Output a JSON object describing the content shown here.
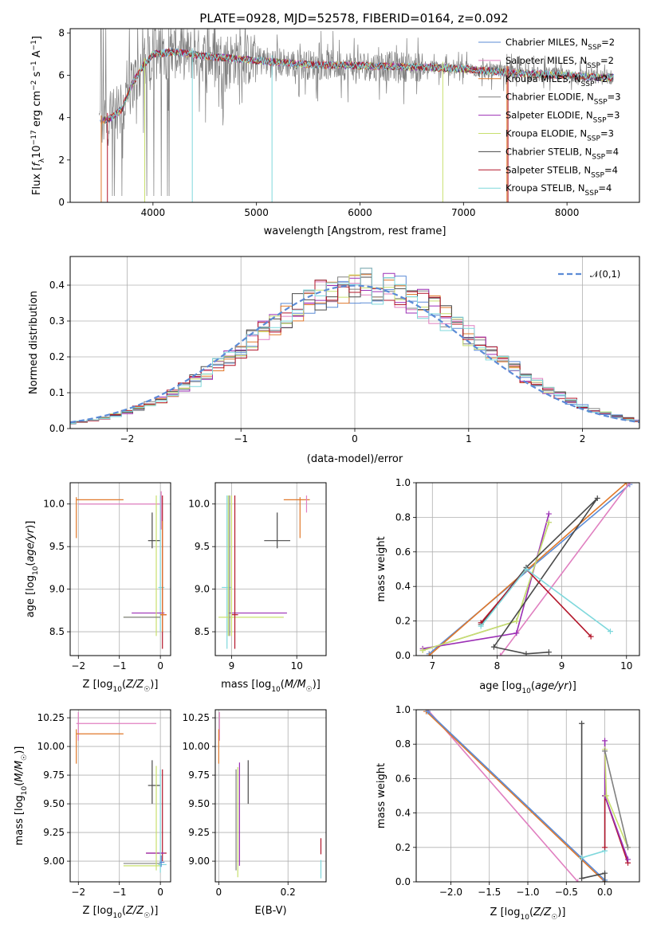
{
  "figure": {
    "title": "PLATE=0928, MJD=52578, FIBERID=0164, z=0.092"
  },
  "colors": {
    "chabrier_miles": "#5b8bd6",
    "salpeter_miles": "#e07fc0",
    "kroupa_miles": "#e0782a",
    "chabrier_elodie": "#808080",
    "salpeter_elodie": "#9b2fb5",
    "kroupa_elodie": "#c8e06e",
    "chabrier_stelib": "#4a4a4a",
    "salpeter_stelib": "#b3162a",
    "kroupa_stelib": "#7fd8dc",
    "normal_curve": "#5b8bd6",
    "grid": "#b0b0b0",
    "data_spectrum": "#7f7f7f"
  },
  "chart_data": [
    {
      "id": "spectrum",
      "type": "line",
      "xlabel": "wavelength [Angstrom, rest frame]",
      "ylabel": "Flux [f_λ10^-17 erg cm^-2 s^-1 A^-1]",
      "xlim": [
        3200,
        8700
      ],
      "ylim": [
        0,
        8.2
      ],
      "xticks": [
        4000,
        5000,
        6000,
        7000,
        8000
      ],
      "yticks": [
        0,
        2,
        4,
        6,
        8
      ],
      "grid": false,
      "legend_position": "upper-right",
      "legend": [
        {
          "name": "Chabrier MILES, N_SSP=2"
        },
        {
          "name": "Salpeter MILES, N_SSP=2"
        },
        {
          "name": "Kroupa MILES, N_SSP=2"
        },
        {
          "name": "Chabrier ELODIE, N_SSP=3"
        },
        {
          "name": "Salpeter ELODIE, N_SSP=3"
        },
        {
          "name": "Kroupa ELODIE, N_SSP=3"
        },
        {
          "name": "Chabrier STELIB, N_SSP=4"
        },
        {
          "name": "Salpeter STELIB, N_SSP=4"
        },
        {
          "name": "Kroupa STELIB, N_SSP=4"
        }
      ],
      "model_continuum": {
        "x": [
          3500,
          3600,
          3700,
          3800,
          3900,
          4000,
          4200,
          4500,
          5000,
          5500,
          6000,
          6500,
          7000,
          7500,
          8000,
          8300,
          8450
        ],
        "y": [
          3.8,
          4.0,
          4.4,
          5.6,
          6.4,
          7.0,
          7.1,
          6.9,
          6.7,
          6.5,
          6.45,
          6.4,
          6.3,
          6.1,
          6.0,
          5.9,
          5.9
        ]
      }
    },
    {
      "id": "residuals",
      "type": "histogram",
      "xlabel": "(data-model)/error",
      "ylabel": "Normed distribution",
      "xlim": [
        -2.5,
        2.5
      ],
      "ylim": [
        0,
        0.48
      ],
      "xticks": [
        -2,
        -1,
        0,
        1,
        2
      ],
      "yticks": [
        0.0,
        0.1,
        0.2,
        0.3,
        0.4
      ],
      "grid": true,
      "legend_position": "upper-right",
      "legend": [
        {
          "name": "𝒩(0,1)"
        }
      ],
      "bin_width": 0.1
    },
    {
      "id": "age_vs_Z",
      "type": "errorbar",
      "xlabel": "Z [log10(Z/Z☉)]",
      "ylabel": "age  [log10(age/yr)]",
      "xlim": [
        -2.2,
        0.25
      ],
      "ylim": [
        8.22,
        10.25
      ],
      "xticks": [
        -2,
        -1,
        0
      ],
      "yticks": [
        8.5,
        9.0,
        9.5,
        10.0
      ],
      "grid": true
    },
    {
      "id": "age_vs_mass",
      "type": "errorbar",
      "xlabel": "mass [log10(M/M☉)]",
      "ylabel": "",
      "xlim": [
        8.75,
        10.45
      ],
      "ylim": [
        8.22,
        10.25
      ],
      "xticks": [
        9,
        10
      ],
      "yticks": [
        8.5,
        9.0,
        9.5,
        10.0
      ],
      "grid": true
    },
    {
      "id": "weight_vs_age",
      "type": "line",
      "xlabel": "age  [log10(age/yr)]",
      "ylabel": "mass weight",
      "xlim": [
        6.75,
        10.2
      ],
      "ylim": [
        0,
        1.0
      ],
      "xticks": [
        7,
        8,
        9,
        10
      ],
      "yticks": [
        0.0,
        0.2,
        0.4,
        0.6,
        0.8,
        1.0
      ],
      "grid": true,
      "series": [
        {
          "key": "chabrier_miles",
          "x": [
            6.95,
            10.05
          ],
          "y": [
            0.01,
            0.99
          ]
        },
        {
          "key": "salpeter_miles",
          "x": [
            8.05,
            10.05
          ],
          "y": [
            0.0,
            1.0
          ]
        },
        {
          "key": "kroupa_miles",
          "x": [
            6.95,
            10.0
          ],
          "y": [
            0.0,
            1.0
          ]
        },
        {
          "key": "chabrier_elodie",
          "x": [
            6.85,
            8.3,
            8.8
          ],
          "y": [
            0.03,
            0.2,
            0.77
          ]
        },
        {
          "key": "salpeter_elodie",
          "x": [
            6.85,
            8.3,
            8.8
          ],
          "y": [
            0.04,
            0.13,
            0.82
          ]
        },
        {
          "key": "kroupa_elodie",
          "x": [
            6.85,
            8.3,
            8.8
          ],
          "y": [
            0.03,
            0.2,
            0.77
          ]
        },
        {
          "key": "chabrier_stelib",
          "x": [
            7.75,
            8.45,
            9.55,
            7.95,
            8.45,
            8.8
          ],
          "y": [
            0.18,
            0.51,
            0.91,
            0.05,
            0.01,
            0.02
          ]
        },
        {
          "key": "salpeter_stelib",
          "x": [
            7.75,
            8.45,
            9.45
          ],
          "y": [
            0.19,
            0.5,
            0.11
          ]
        },
        {
          "key": "kroupa_stelib",
          "x": [
            7.75,
            8.45,
            9.75
          ],
          "y": [
            0.17,
            0.5,
            0.14
          ]
        }
      ]
    },
    {
      "id": "mass_vs_Z",
      "type": "errorbar",
      "xlabel": "Z [log10(Z/Z☉)]",
      "ylabel": "mass [log10(M/M☉)]",
      "xlim": [
        -2.2,
        0.25
      ],
      "ylim": [
        8.82,
        10.32
      ],
      "xticks": [
        -2,
        -1,
        0
      ],
      "yticks": [
        9.0,
        9.25,
        9.5,
        9.75,
        10.0,
        10.25
      ],
      "grid": true
    },
    {
      "id": "mass_vs_ebv",
      "type": "errorbar",
      "xlabel": "E(B-V)",
      "ylabel": "",
      "xlim": [
        -0.01,
        0.31
      ],
      "ylim": [
        8.82,
        10.32
      ],
      "xticks": [
        0.0,
        0.2
      ],
      "yticks": [
        9.0,
        9.25,
        9.5,
        9.75,
        10.0,
        10.25
      ],
      "grid": true
    },
    {
      "id": "weight_vs_Z",
      "type": "line",
      "xlabel": "Z [log10(Z/Z☉)]",
      "ylabel": "mass weight",
      "xlim": [
        -2.45,
        0.45
      ],
      "ylim": [
        0,
        1.0
      ],
      "xticks": [
        -2.0,
        -1.5,
        -1.0,
        -0.5,
        0.0
      ],
      "yticks": [
        0.0,
        0.2,
        0.4,
        0.6,
        0.8,
        1.0
      ],
      "grid": true,
      "series": [
        {
          "key": "salpeter_miles",
          "x": [
            -2.3,
            -0.35
          ],
          "y": [
            1.0,
            0.0
          ]
        },
        {
          "key": "kroupa_miles",
          "x": [
            -2.32,
            0.0
          ],
          "y": [
            0.99,
            0.0
          ]
        },
        {
          "key": "chabrier_miles",
          "x": [
            -2.3,
            0.0
          ],
          "y": [
            0.99,
            0.01
          ]
        },
        {
          "key": "chabrier_stelib",
          "x": [
            -0.3,
            -0.3,
            0.0,
            0.0
          ],
          "y": [
            0.92,
            0.02,
            0.05,
            0.0
          ]
        },
        {
          "key": "kroupa_stelib",
          "x": [
            -0.3,
            0.0,
            0.0,
            0.3
          ],
          "y": [
            0.14,
            0.18,
            0.5,
            0.13
          ]
        },
        {
          "key": "salpeter_stelib",
          "x": [
            0.0,
            0.0,
            0.3
          ],
          "y": [
            0.2,
            0.5,
            0.11
          ]
        },
        {
          "key": "salpeter_elodie",
          "x": [
            0.0,
            0.0,
            0.3
          ],
          "y": [
            0.82,
            0.5,
            0.13
          ]
        },
        {
          "key": "kroupa_elodie",
          "x": [
            0.0,
            0.02,
            0.3
          ],
          "y": [
            0.77,
            0.5,
            0.2
          ]
        },
        {
          "key": "chabrier_elodie",
          "x": [
            0.0,
            0.3
          ],
          "y": [
            0.76,
            0.2
          ]
        }
      ]
    }
  ]
}
